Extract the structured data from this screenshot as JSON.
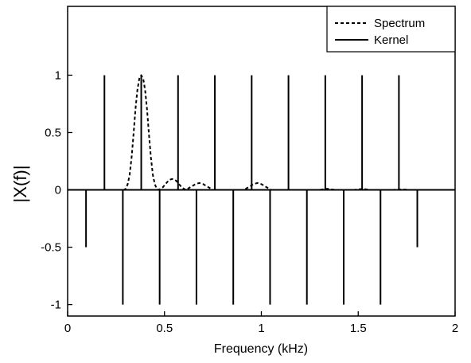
{
  "chart_data": {
    "type": "line",
    "title": "",
    "xlabel": "Frequency (kHz)",
    "ylabel": "|X(f)|",
    "xlim": [
      0,
      2
    ],
    "ylim": [
      -1.1,
      1.6
    ],
    "x_ticks": [
      0,
      0.5,
      1,
      1.5,
      2
    ],
    "y_ticks": [
      -1,
      -0.5,
      0,
      0.5,
      1
    ],
    "x_tick_labels": [
      "0",
      "0.5",
      "1",
      "1.5",
      "2"
    ],
    "y_tick_labels": [
      "-1",
      "-0.5",
      "0",
      "0.5",
      "1"
    ],
    "grid": false,
    "legend_position": "top-right",
    "series": [
      {
        "name": "Spectrum",
        "style": "dashed",
        "color": "#000000",
        "x": [
          0,
          0.29,
          0.3,
          0.31,
          0.32,
          0.33,
          0.34,
          0.35,
          0.36,
          0.37,
          0.38,
          0.39,
          0.4,
          0.41,
          0.42,
          0.43,
          0.44,
          0.45,
          0.46,
          0.47,
          0.48,
          0.49,
          0.5,
          0.51,
          0.52,
          0.53,
          0.54,
          0.55,
          0.56,
          0.57,
          0.58,
          0.59,
          0.6,
          0.61,
          0.62,
          0.63,
          0.64,
          0.65,
          0.66,
          0.67,
          0.68,
          0.69,
          0.7,
          0.71,
          0.72,
          0.73,
          0.74,
          0.75,
          0.76,
          0.77,
          0.78,
          0.79,
          0.8,
          0.81,
          0.82,
          0.83,
          0.84,
          0.85,
          0.86,
          0.87,
          0.88,
          0.89,
          0.9,
          0.91,
          0.92,
          0.93,
          0.94,
          0.95,
          0.96,
          0.97,
          0.98,
          0.99,
          1.0,
          1.01,
          1.02,
          1.03,
          1.04,
          1.05,
          1.3,
          1.32,
          1.34,
          1.36,
          1.38,
          1.48,
          1.5,
          1.52,
          1.54,
          1.56,
          1.58,
          1.68,
          1.7,
          1.72,
          1.74,
          1.76,
          1.8,
          2.0
        ],
        "y": [
          0,
          0,
          0.01,
          0.05,
          0.13,
          0.28,
          0.48,
          0.7,
          0.87,
          0.97,
          1.0,
          0.97,
          0.87,
          0.7,
          0.48,
          0.28,
          0.13,
          0.05,
          0.01,
          0.0,
          0.01,
          0.02,
          0.04,
          0.06,
          0.08,
          0.09,
          0.095,
          0.09,
          0.08,
          0.06,
          0.04,
          0.02,
          0.01,
          0.0,
          0.01,
          0.02,
          0.03,
          0.04,
          0.05,
          0.055,
          0.06,
          0.055,
          0.05,
          0.04,
          0.03,
          0.02,
          0.01,
          0.0,
          0.0,
          0.0,
          0.0,
          0.0,
          0.0,
          0.0,
          0.0,
          0.0,
          0.0,
          0.0,
          0.0,
          0.0,
          0.0,
          0.0,
          0.0,
          0.0,
          0.01,
          0.02,
          0.03,
          0.04,
          0.05,
          0.055,
          0.06,
          0.055,
          0.05,
          0.04,
          0.03,
          0.02,
          0.01,
          0.0,
          0.0,
          0.005,
          0.01,
          0.005,
          0.0,
          0.0,
          0.005,
          0.008,
          0.005,
          0.0,
          0.0,
          0.0,
          0.003,
          0.004,
          0.003,
          0.0,
          0.0,
          0.0
        ]
      },
      {
        "name": "Kernel",
        "style": "solid",
        "color": "#000000",
        "render": "stem",
        "x": [
          0.095,
          0.19,
          0.285,
          0.38,
          0.475,
          0.57,
          0.665,
          0.76,
          0.855,
          0.95,
          1.045,
          1.14,
          1.235,
          1.33,
          1.425,
          1.52,
          1.615,
          1.71,
          1.805
        ],
        "y": [
          -0.5,
          1,
          -1,
          1,
          -1,
          1,
          -1,
          1,
          -1,
          1,
          -1,
          1,
          -1,
          1,
          -1,
          1,
          -1,
          1,
          -0.5
        ]
      }
    ]
  }
}
